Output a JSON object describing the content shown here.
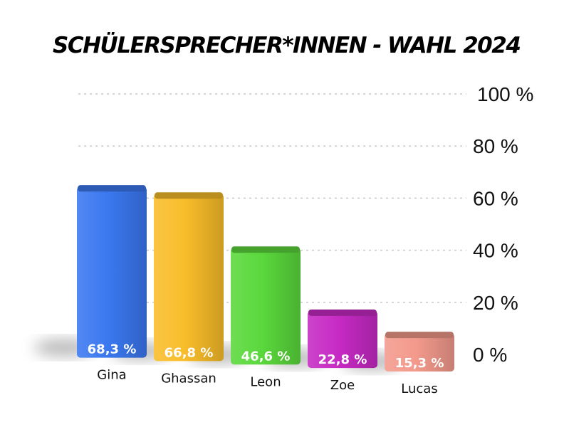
{
  "chart_data": {
    "type": "bar",
    "title": "SCHÜLERSPRECHER*INNEN - WAHL 2024",
    "categories": [
      "Gina",
      "Ghassan",
      "Leon",
      "Zoe",
      "Lucas"
    ],
    "values": [
      68.3,
      66.8,
      46.6,
      22.8,
      15.3
    ],
    "value_labels": [
      "68,3 %",
      "66,8 %",
      "46,6 %",
      "22,8 %",
      "15,3 %"
    ],
    "colors": [
      "#3a78f0",
      "#f9bd2a",
      "#5ad83c",
      "#c62ac4",
      "#f39a8c"
    ],
    "ylim": [
      0,
      100
    ],
    "yticks": [
      0,
      20,
      40,
      60,
      80,
      100
    ],
    "ytick_labels": [
      "0 %",
      "20 %",
      "40 %",
      "60 %",
      "80 %",
      "100 %"
    ],
    "grid": true,
    "axis_side": "right"
  }
}
